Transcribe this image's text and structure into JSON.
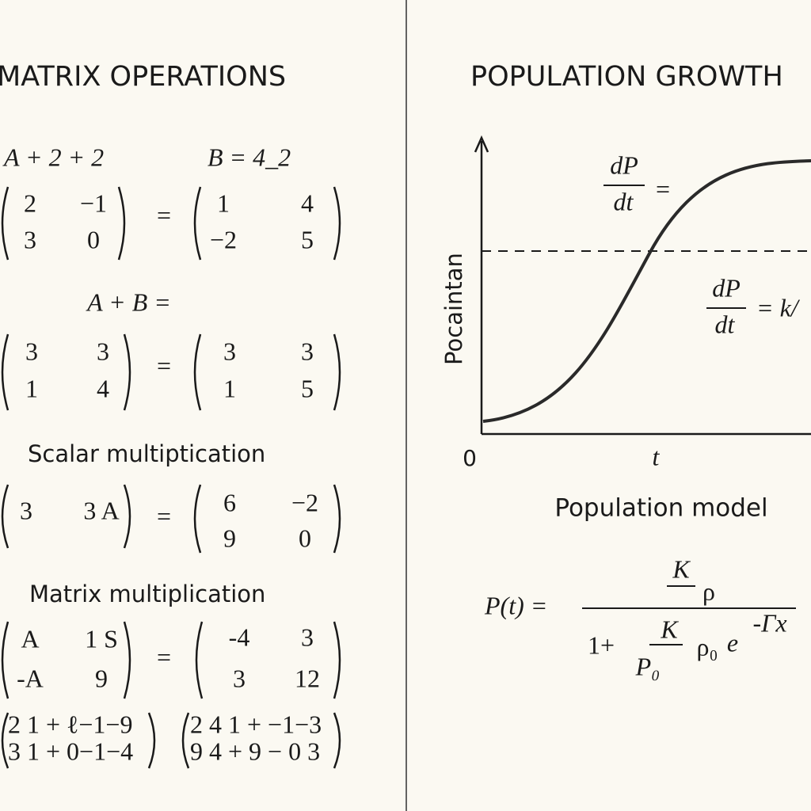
{
  "left": {
    "title": "MATRIX OPERATIONS",
    "header": [
      "A + 2 + 2",
      "B = 4_2"
    ],
    "eq1": {
      "left": [
        [
          "2",
          "−1"
        ],
        [
          "3",
          "0"
        ]
      ],
      "op": "=",
      "right": [
        [
          "1",
          "4"
        ],
        [
          "−2",
          "5"
        ]
      ]
    },
    "label1": "A + B =",
    "eq2": {
      "left": [
        [
          "3",
          "3"
        ],
        [
          "1",
          "4"
        ]
      ],
      "op": "=",
      "right": [
        [
          "3",
          "3"
        ],
        [
          "1",
          "5"
        ]
      ]
    },
    "label2": "Scalar multiptication",
    "eq3": {
      "left": [
        [
          "3",
          "3 A"
        ]
      ],
      "op": "=",
      "right": [
        [
          "6",
          "−2"
        ],
        [
          "9",
          "0"
        ]
      ]
    },
    "label3": "Matrix multiplication",
    "eq4": {
      "left": [
        [
          "A",
          "1 S"
        ],
        [
          "-A",
          "9"
        ]
      ],
      "op": "=",
      "right": [
        [
          "-4",
          "3"
        ],
        [
          "3",
          "12"
        ]
      ]
    },
    "eq5": {
      "left": [
        "2 1 + ℓ−1−9",
        "3 1 + 0−1−4"
      ],
      "right": [
        "2 4 1 + −1−3",
        "9 4 + 9 − 0 3"
      ]
    }
  },
  "right": {
    "title": "POPULATION GROWTH",
    "y_label": "Pocaintan",
    "deriv1": {
      "num": "dP",
      "den": "dt",
      "op": "="
    },
    "deriv2": {
      "num": "dP",
      "den": "dt",
      "rest": "= k/"
    },
    "origin": "0",
    "x_label": "t",
    "caption": "Population model",
    "formula": {
      "lhs": "P(t) =",
      "num_k": "K",
      "num_rho": "ρ",
      "den_one": "1+",
      "den_k": "K",
      "den_p0": "P₀",
      "rho0": "ρ₀",
      "e": "e",
      "exp": "-Γx"
    }
  }
}
